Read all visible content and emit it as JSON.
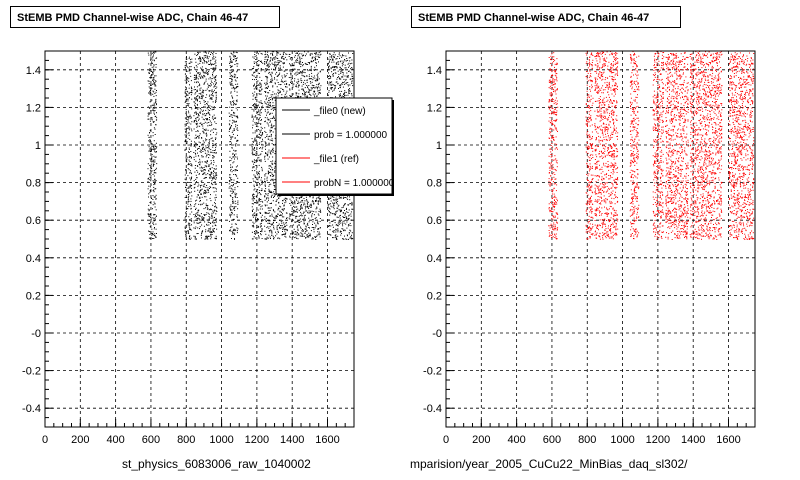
{
  "canvas": {
    "footnote": ""
  },
  "chart_data": [
    {
      "type": "scatter",
      "title": "StEMB PMD Channel-wise ADC, Chain 46-47",
      "xlabel": "st_physics_6083006_raw_1040002",
      "ylabel": "",
      "xlim": [
        0,
        1750
      ],
      "ylim": [
        -0.5,
        1.5
      ],
      "xticks": [
        0,
        200,
        400,
        600,
        800,
        1000,
        1200,
        1400,
        1600
      ],
      "yticks": [
        1.4,
        1.2,
        1,
        0.8,
        0.6,
        0.4,
        0.2,
        0,
        -0.2,
        -0.4
      ],
      "ytick_labels": [
        "1.4",
        "1.2",
        "1",
        "0.8",
        "0.6",
        "0.4",
        "0.2",
        "-0",
        "-0.2",
        "-0.4"
      ],
      "grid": true,
      "series": [
        {
          "name": "_file0 (new)",
          "color": "#000000",
          "bands": [
            [
              580,
              630
            ],
            [
              790,
              830
            ],
            [
              840,
              970
            ],
            [
              1040,
              1090
            ],
            [
              1170,
              1230
            ],
            [
              1240,
              1370
            ],
            [
              1380,
              1560
            ],
            [
              1600,
              1740
            ]
          ],
          "y_range": [
            0.5,
            1.5
          ]
        }
      ],
      "legend": {
        "position": "top-right",
        "entries": [
          {
            "label": "_file0 (new)",
            "color": "#000000"
          },
          {
            "label": "prob = 1.000000",
            "color": "#000000"
          },
          {
            "label": "_file1 (ref)",
            "color": "#ff0000"
          },
          {
            "label": "probN = 1.000000",
            "color": "#ff0000"
          }
        ]
      }
    },
    {
      "type": "scatter",
      "title": "StEMB PMD Channel-wise ADC, Chain 46-47",
      "xlabel": "mparision/year_2005_CuCu22_MinBias_daq_sl302/",
      "ylabel": "",
      "xlim": [
        0,
        1750
      ],
      "ylim": [
        -0.5,
        1.5
      ],
      "xticks": [
        0,
        200,
        400,
        600,
        800,
        1000,
        1200,
        1400,
        1600
      ],
      "yticks": [
        1.4,
        1.2,
        1,
        0.8,
        0.6,
        0.4,
        0.2,
        0,
        -0.2,
        -0.4
      ],
      "ytick_labels": [
        "1.4",
        "1.2",
        "1",
        "0.8",
        "0.6",
        "0.4",
        "0.2",
        "-0",
        "-0.2",
        "-0.4"
      ],
      "grid": true,
      "series": [
        {
          "name": "_file1 (ref)",
          "color": "#ff0000",
          "bands": [
            [
              580,
              630
            ],
            [
              790,
              830
            ],
            [
              840,
              970
            ],
            [
              1040,
              1090
            ],
            [
              1170,
              1230
            ],
            [
              1240,
              1370
            ],
            [
              1380,
              1560
            ],
            [
              1600,
              1740
            ]
          ],
          "y_range": [
            0.5,
            1.5
          ]
        }
      ]
    }
  ]
}
